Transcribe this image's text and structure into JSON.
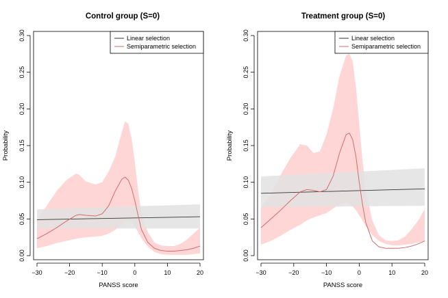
{
  "chart_data": [
    {
      "type": "line",
      "title": "Control group (S=0)",
      "xlabel": "PANSS score",
      "ylabel": "Probability",
      "xlim": [
        -30,
        20
      ],
      "ylim": [
        0,
        0.3
      ],
      "xticks": [
        -30,
        -20,
        -10,
        0,
        10,
        20
      ],
      "xtick_labels": [
        "−30",
        "−20",
        "−10",
        "0",
        "10",
        "20"
      ],
      "yticks": [
        0,
        0.05,
        0.1,
        0.15,
        0.2,
        0.25,
        0.3
      ],
      "ytick_labels": [
        "0.00",
        "0.05",
        "0.10",
        "0.15",
        "0.20",
        "0.25",
        "0.30"
      ],
      "grid": false,
      "legend_position": "top-right",
      "legend": [
        "Linear selection",
        "Semiparametric selection"
      ],
      "colors": {
        "linear_line": "#333333",
        "linear_band": "#e2e2e2",
        "semi_line": "#d26b6b",
        "semi_band": "#ffd6d6"
      },
      "series": [
        {
          "name": "Linear selection",
          "x": [
            -30,
            20
          ],
          "y": [
            0.049,
            0.053
          ],
          "lower": [
            0.037,
            0.037
          ],
          "upper": [
            0.063,
            0.07
          ]
        },
        {
          "name": "Semiparametric selection",
          "x": [
            -30,
            -27,
            -24,
            -21,
            -18,
            -17,
            -15,
            -12,
            -10,
            -8,
            -6,
            -4,
            -3,
            -2,
            -1,
            0,
            1,
            2,
            4,
            6,
            8,
            10,
            12,
            14,
            16,
            18,
            20
          ],
          "y": [
            0.023,
            0.03,
            0.038,
            0.047,
            0.055,
            0.056,
            0.055,
            0.054,
            0.057,
            0.068,
            0.088,
            0.104,
            0.107,
            0.103,
            0.092,
            0.075,
            0.055,
            0.036,
            0.018,
            0.01,
            0.007,
            0.006,
            0.006,
            0.007,
            0.008,
            0.01,
            0.013
          ],
          "lower": [
            0.01,
            0.013,
            0.017,
            0.02,
            0.023,
            0.024,
            0.025,
            0.026,
            0.027,
            0.03,
            0.035,
            0.042,
            0.046,
            0.048,
            0.046,
            0.04,
            0.032,
            0.024,
            0.012,
            0.005,
            0.002,
            0.001,
            0.001,
            0.001,
            0.001,
            0.002,
            0.003
          ],
          "upper": [
            0.048,
            0.068,
            0.088,
            0.103,
            0.112,
            0.11,
            0.101,
            0.097,
            0.1,
            0.115,
            0.135,
            0.168,
            0.183,
            0.18,
            0.16,
            0.128,
            0.09,
            0.058,
            0.032,
            0.018,
            0.014,
            0.013,
            0.013,
            0.016,
            0.022,
            0.03,
            0.038
          ]
        }
      ]
    },
    {
      "type": "line",
      "title": "Treatment group (S=0)",
      "xlabel": "PANSS score",
      "ylabel": "Probability",
      "xlim": [
        -30,
        20
      ],
      "ylim": [
        0,
        0.3
      ],
      "xticks": [
        -30,
        -20,
        -10,
        0,
        10,
        20
      ],
      "xtick_labels": [
        "−30",
        "−20",
        "−10",
        "0",
        "10",
        "20"
      ],
      "yticks": [
        0,
        0.05,
        0.1,
        0.15,
        0.2,
        0.25,
        0.3
      ],
      "ytick_labels": [
        "0.00",
        "0.05",
        "0.10",
        "0.15",
        "0.20",
        "0.25",
        "0.30"
      ],
      "grid": false,
      "legend_position": "top-right",
      "legend": [
        "Linear selection",
        "Semiparametric selection"
      ],
      "colors": {
        "linear_line": "#333333",
        "linear_band": "#e2e2e2",
        "semi_line": "#d26b6b",
        "semi_band": "#ffd6d6"
      },
      "series": [
        {
          "name": "Linear selection",
          "x": [
            -30,
            20
          ],
          "y": [
            0.085,
            0.091
          ],
          "lower": [
            0.066,
            0.068
          ],
          "upper": [
            0.108,
            0.119
          ]
        },
        {
          "name": "Semiparametric selection",
          "x": [
            -30,
            -27,
            -24,
            -21,
            -18,
            -16,
            -14,
            -12,
            -10,
            -8,
            -6,
            -4,
            -3,
            -2,
            -1,
            0,
            1,
            2,
            4,
            6,
            8,
            10,
            12,
            14,
            16,
            18,
            20
          ],
          "y": [
            0.038,
            0.05,
            0.062,
            0.075,
            0.087,
            0.09,
            0.089,
            0.087,
            0.09,
            0.108,
            0.14,
            0.165,
            0.167,
            0.158,
            0.135,
            0.1,
            0.07,
            0.045,
            0.02,
            0.012,
            0.01,
            0.01,
            0.01,
            0.011,
            0.013,
            0.016,
            0.02
          ],
          "lower": [
            0.015,
            0.02,
            0.027,
            0.035,
            0.042,
            0.048,
            0.052,
            0.055,
            0.058,
            0.064,
            0.07,
            0.072,
            0.07,
            0.067,
            0.062,
            0.055,
            0.048,
            0.04,
            0.028,
            0.02,
            0.016,
            0.014,
            0.014,
            0.015,
            0.016,
            0.018,
            0.02
          ],
          "upper": [
            0.065,
            0.085,
            0.11,
            0.133,
            0.152,
            0.15,
            0.14,
            0.142,
            0.165,
            0.2,
            0.245,
            0.273,
            0.275,
            0.265,
            0.23,
            0.18,
            0.13,
            0.09,
            0.048,
            0.028,
            0.021,
            0.02,
            0.021,
            0.026,
            0.036,
            0.048,
            0.063
          ]
        }
      ]
    }
  ]
}
